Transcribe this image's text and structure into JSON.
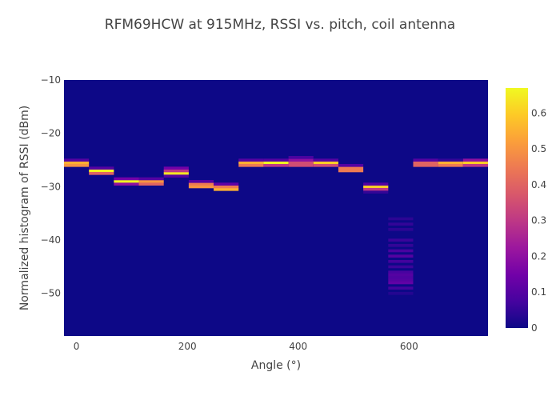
{
  "chart_data": {
    "type": "heatmap",
    "title": "RFM69HCW at 915MHz, RSSI vs. pitch, coil antenna",
    "xlabel": "Angle (°)",
    "ylabel": "Normalized histogram of RSSI (dBm)",
    "xlim": [
      -22.5,
      742.5
    ],
    "ylim": [
      -58,
      -10
    ],
    "x_ticks": [
      0,
      200,
      400,
      600
    ],
    "y_ticks": [
      -10,
      -20,
      -30,
      -40,
      -50
    ],
    "x_step": 45,
    "y_step": 0.5,
    "colorscale": [
      "#0d0887",
      "#46039f",
      "#7201a8",
      "#9c179e",
      "#bd3786",
      "#d8576b",
      "#ed7953",
      "#fb9f3a",
      "#fdca26",
      "#f0f921"
    ],
    "zlim": [
      0,
      0.67
    ],
    "colorbar_ticks": [
      0,
      0.1,
      0.2,
      0.3,
      0.4,
      0.5,
      0.6
    ],
    "columns": [
      {
        "x": 0,
        "cells": [
          [
            -25.5,
            0.55
          ],
          [
            -26,
            0.5
          ],
          [
            -25,
            0.1
          ]
        ]
      },
      {
        "x": 45,
        "cells": [
          [
            -27,
            0.66
          ],
          [
            -27.5,
            0.4
          ],
          [
            -26.5,
            0.1
          ]
        ]
      },
      {
        "x": 90,
        "cells": [
          [
            -29,
            0.67
          ],
          [
            -28.5,
            0.15
          ],
          [
            -29.5,
            0.2
          ]
        ]
      },
      {
        "x": 135,
        "cells": [
          [
            -29,
            0.5
          ],
          [
            -29.5,
            0.4
          ],
          [
            -28.5,
            0.1
          ]
        ]
      },
      {
        "x": 180,
        "cells": [
          [
            -27.5,
            0.64
          ],
          [
            -27,
            0.3
          ],
          [
            -26.5,
            0.15
          ],
          [
            -28,
            0.1
          ]
        ]
      },
      {
        "x": 225,
        "cells": [
          [
            -29.5,
            0.45
          ],
          [
            -30,
            0.5
          ],
          [
            -29,
            0.1
          ]
        ]
      },
      {
        "x": 270,
        "cells": [
          [
            -30.5,
            0.55
          ],
          [
            -30,
            0.45
          ],
          [
            -29.5,
            0.12
          ]
        ]
      },
      {
        "x": 315,
        "cells": [
          [
            -25.5,
            0.55
          ],
          [
            -26,
            0.45
          ],
          [
            -25,
            0.1
          ]
        ]
      },
      {
        "x": 360,
        "cells": [
          [
            -25.5,
            0.67
          ],
          [
            -26,
            0.3
          ],
          [
            -25,
            0.1
          ]
        ]
      },
      {
        "x": 405,
        "cells": [
          [
            -25.5,
            0.35
          ],
          [
            -26,
            0.35
          ],
          [
            -25,
            0.2
          ],
          [
            -24.5,
            0.08
          ]
        ]
      },
      {
        "x": 450,
        "cells": [
          [
            -25.5,
            0.6
          ],
          [
            -26,
            0.35
          ],
          [
            -25,
            0.1
          ]
        ]
      },
      {
        "x": 495,
        "cells": [
          [
            -26.5,
            0.45
          ],
          [
            -27,
            0.45
          ],
          [
            -26,
            0.1
          ]
        ]
      },
      {
        "x": 540,
        "cells": [
          [
            -30,
            0.6
          ],
          [
            -30.5,
            0.3
          ],
          [
            -29.5,
            0.1
          ],
          [
            -31,
            0.05
          ]
        ]
      },
      {
        "x": 585,
        "cells": [
          [
            -36,
            0.04
          ],
          [
            -37,
            0.05
          ],
          [
            -38,
            0.04
          ],
          [
            -40,
            0.06
          ],
          [
            -41,
            0.05
          ],
          [
            -42,
            0.08
          ],
          [
            -43,
            0.1
          ],
          [
            -44,
            0.07
          ],
          [
            -45,
            0.06
          ],
          [
            -46,
            0.08
          ],
          [
            -46.5,
            0.1
          ],
          [
            -47,
            0.09
          ],
          [
            -47.5,
            0.1
          ],
          [
            -48,
            0.12
          ],
          [
            -49,
            0.07
          ],
          [
            -50,
            0.03
          ]
        ]
      },
      {
        "x": 630,
        "cells": [
          [
            -25.5,
            0.4
          ],
          [
            -26,
            0.4
          ],
          [
            -25,
            0.1
          ]
        ]
      },
      {
        "x": 675,
        "cells": [
          [
            -25.5,
            0.55
          ],
          [
            -26,
            0.45
          ],
          [
            -25,
            0.05
          ]
        ]
      },
      {
        "x": 720,
        "cells": [
          [
            -25.5,
            0.6
          ],
          [
            -26,
            0.3
          ],
          [
            -25,
            0.2
          ]
        ]
      }
    ]
  }
}
